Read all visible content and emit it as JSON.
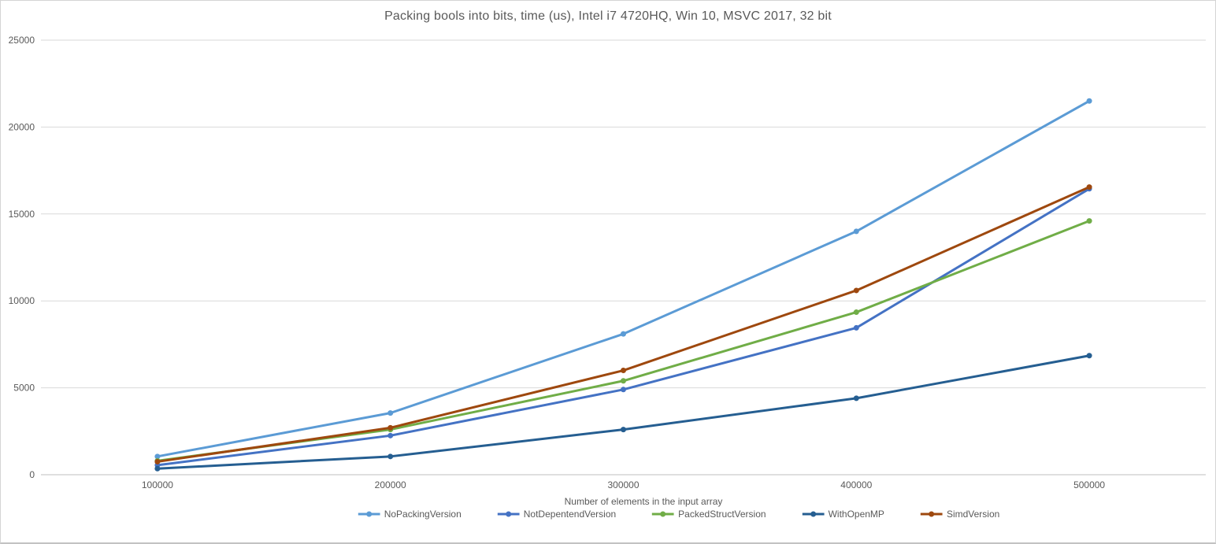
{
  "chart_data": {
    "type": "line",
    "title": "Packing bools into bits, time (us), Intel i7 4720HQ, Win 10, MSVC 2017, 32 bit",
    "xlabel": "Number of elements in the input array",
    "ylabel": "",
    "categories": [
      100000,
      200000,
      300000,
      400000,
      500000
    ],
    "x_tick_labels": [
      "100000",
      "200000",
      "300000",
      "400000",
      "500000"
    ],
    "y_ticks": [
      0,
      5000,
      10000,
      15000,
      20000,
      25000
    ],
    "ylim": [
      0,
      25000
    ],
    "grid": true,
    "legend_position": "bottom",
    "marker": "circle",
    "series": [
      {
        "name": "NoPackingVersion",
        "color": "#5B9BD5",
        "values": [
          1050,
          3550,
          8100,
          14000,
          21500
        ]
      },
      {
        "name": "NotDepentendVersion",
        "color": "#4472C4",
        "values": [
          550,
          2250,
          4900,
          8450,
          16450
        ]
      },
      {
        "name": "PackedStructVersion",
        "color": "#70AD47",
        "values": [
          800,
          2600,
          5400,
          9350,
          14600
        ]
      },
      {
        "name": "WithOpenMP",
        "color": "#255E91",
        "values": [
          350,
          1050,
          2600,
          4400,
          6850
        ]
      },
      {
        "name": "SimdVersion",
        "color": "#9E480E",
        "values": [
          750,
          2700,
          6000,
          10600,
          16550
        ]
      }
    ]
  },
  "style": {
    "text_color": "#595959",
    "gridline_color": "#D9D9D9",
    "axis_line_color": "#BFBFBF",
    "background": "#FFFFFF",
    "border_color": "#D4D4D4"
  }
}
